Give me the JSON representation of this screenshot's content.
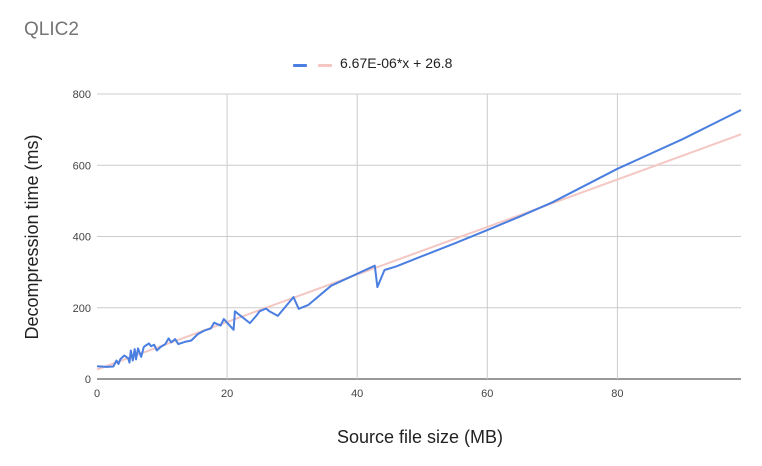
{
  "chart_data": {
    "type": "line",
    "title": "QLIC2",
    "xlabel": "Source file size (MB)",
    "ylabel": "Decompression time (ms)",
    "xlim": [
      0,
      99
    ],
    "ylim": [
      0,
      800
    ],
    "x_ticks": [
      "0",
      "20",
      "40",
      "60",
      "80"
    ],
    "y_ticks": [
      "0",
      "200",
      "400",
      "600",
      "800"
    ],
    "grid": true,
    "legend_position": "top-center",
    "series": [
      {
        "color": "#4a7ee0",
        "points": [
          [
            0,
            36
          ],
          [
            1.5,
            34
          ],
          [
            2.5,
            35
          ],
          [
            3,
            52
          ],
          [
            3.3,
            42
          ],
          [
            3.6,
            56
          ],
          [
            4.2,
            66
          ],
          [
            4.8,
            58
          ],
          [
            5,
            46
          ],
          [
            5.2,
            80
          ],
          [
            5.5,
            52
          ],
          [
            5.8,
            84
          ],
          [
            6,
            55
          ],
          [
            6.3,
            86
          ],
          [
            6.8,
            62
          ],
          [
            7.2,
            90
          ],
          [
            7.5,
            94
          ],
          [
            8,
            100
          ],
          [
            8.3,
            92
          ],
          [
            8.8,
            96
          ],
          [
            9.2,
            80
          ],
          [
            9.8,
            90
          ],
          [
            10.5,
            98
          ],
          [
            11,
            114
          ],
          [
            11.4,
            103
          ],
          [
            12,
            112
          ],
          [
            12.5,
            98
          ],
          [
            13.5,
            104
          ],
          [
            14.5,
            108
          ],
          [
            15.5,
            126
          ],
          [
            16.5,
            136
          ],
          [
            17.5,
            142
          ],
          [
            18,
            158
          ],
          [
            19,
            150
          ],
          [
            19.5,
            168
          ],
          [
            20,
            158
          ],
          [
            21,
            138
          ],
          [
            21.2,
            190
          ],
          [
            23.5,
            157
          ],
          [
            24.5,
            178
          ],
          [
            25,
            190
          ],
          [
            26,
            198
          ],
          [
            26.5,
            190
          ],
          [
            27.8,
            177
          ],
          [
            30.2,
            230
          ],
          [
            31,
            197
          ],
          [
            32.5,
            208
          ],
          [
            36,
            262
          ],
          [
            42.7,
            318
          ],
          [
            43.1,
            258
          ],
          [
            44.2,
            306
          ],
          [
            46,
            316
          ],
          [
            50,
            345
          ],
          [
            55,
            381
          ],
          [
            60,
            418
          ],
          [
            65,
            456
          ],
          [
            70,
            496
          ],
          [
            80,
            590
          ],
          [
            90,
            673
          ],
          [
            99,
            755
          ]
        ]
      },
      {
        "name": "6.67E-06*x + 26.8",
        "color": "#f4c7c3",
        "points": [
          [
            0,
            26.8
          ],
          [
            99,
            687
          ]
        ]
      }
    ]
  }
}
